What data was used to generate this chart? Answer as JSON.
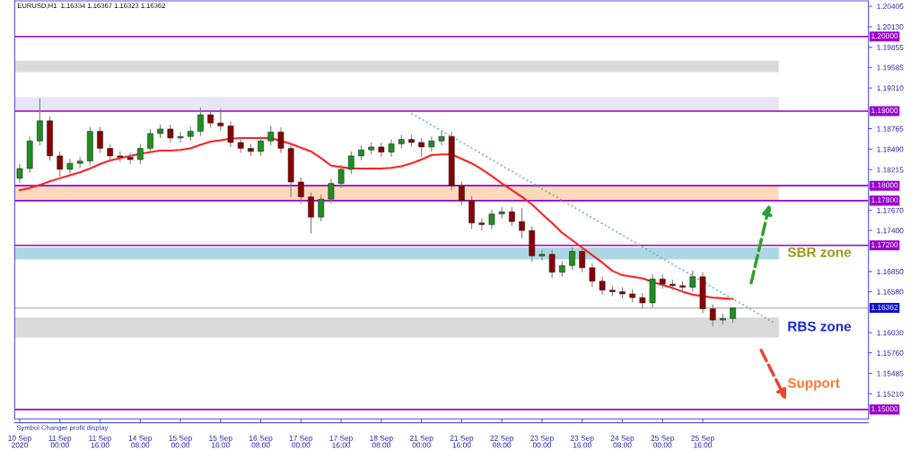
{
  "chart_data": {
    "type": "candlestick",
    "annotations": [
      "EURUSD,H1  1.16334 1.16367 1.16323 1.16362",
      "Support",
      "Symbol Changer profit display"
    ],
    "categories": [
      "10 Sep 2020",
      null,
      null,
      null,
      "11 Sep 00:00",
      null,
      null,
      null,
      "11 Sep 16:00",
      null,
      null,
      null,
      "14 Sep 08:00",
      null,
      null,
      null,
      "15 Sep 00:00",
      null,
      null,
      null,
      "15 Sep 16:00",
      null,
      null,
      null,
      "16 Sep 08:00",
      null,
      null,
      null,
      "17 Sep 00:00",
      null,
      null,
      null,
      "17 Sep 16:00",
      null,
      null,
      null,
      "18 Sep 08:00",
      null,
      null,
      null,
      "21 Sep 00:00",
      null,
      null,
      null,
      "21 Sep 16:00",
      null,
      null,
      null,
      "22 Sep 08:00",
      null,
      null,
      null,
      "23 Sep 00:00",
      null,
      null,
      null,
      "23 Sep 16:00",
      null,
      null,
      null,
      "24 Sep 08:00",
      null,
      null,
      null,
      "25 Sep 00:00",
      null,
      null,
      null,
      "25 Sep 16:00",
      null,
      null,
      null,
      null,
      null,
      null,
      null,
      null,
      null,
      null,
      null,
      null,
      null,
      null,
      null,
      null
    ],
    "ohlc": [
      [
        1.181,
        1.1829,
        1.1804,
        1.1823
      ],
      [
        1.1823,
        1.1866,
        1.1817,
        1.186
      ],
      [
        1.186,
        1.1917,
        1.1854,
        1.1887
      ],
      [
        1.1887,
        1.1893,
        1.1834,
        1.184
      ],
      [
        1.184,
        1.1846,
        1.1812,
        1.1822
      ],
      [
        1.1822,
        1.1836,
        1.1816,
        1.183
      ],
      [
        1.183,
        1.1839,
        1.1824,
        1.1833
      ],
      [
        1.1833,
        1.1879,
        1.1827,
        1.1873
      ],
      [
        1.1873,
        1.1879,
        1.1844,
        1.185
      ],
      [
        1.185,
        1.1856,
        1.1834,
        1.184
      ],
      [
        1.184,
        1.1846,
        1.1832,
        1.1838
      ],
      [
        1.1838,
        1.1844,
        1.1829,
        1.1835
      ],
      [
        1.1835,
        1.1856,
        1.1829,
        1.185
      ],
      [
        1.185,
        1.1876,
        1.1844,
        1.187
      ],
      [
        1.187,
        1.1882,
        1.1864,
        1.1876
      ],
      [
        1.1876,
        1.1882,
        1.1858,
        1.1864
      ],
      [
        1.1864,
        1.1872,
        1.1858,
        1.1866
      ],
      [
        1.1866,
        1.1879,
        1.186,
        1.1873
      ],
      [
        1.1873,
        1.1905,
        1.1867,
        1.1895
      ],
      [
        1.1895,
        1.1901,
        1.1878,
        1.1884
      ],
      [
        1.1884,
        1.1903,
        1.1874,
        1.188
      ],
      [
        1.188,
        1.1886,
        1.1852,
        1.1858
      ],
      [
        1.1858,
        1.1864,
        1.1844,
        1.185
      ],
      [
        1.185,
        1.1856,
        1.184,
        1.1846
      ],
      [
        1.1846,
        1.1866,
        1.184,
        1.186
      ],
      [
        1.186,
        1.188,
        1.1854,
        1.1872
      ],
      [
        1.1872,
        1.1878,
        1.1844,
        1.185
      ],
      [
        1.185,
        1.1856,
        1.1785,
        1.1805
      ],
      [
        1.1805,
        1.1811,
        1.1776,
        1.1785
      ],
      [
        1.1785,
        1.1791,
        1.1736,
        1.1758
      ],
      [
        1.1758,
        1.1788,
        1.1752,
        1.1782
      ],
      [
        1.1782,
        1.1809,
        1.1776,
        1.1803
      ],
      [
        1.1803,
        1.1828,
        1.1797,
        1.1822
      ],
      [
        1.1822,
        1.1846,
        1.1816,
        1.184
      ],
      [
        1.184,
        1.1854,
        1.1834,
        1.1848
      ],
      [
        1.1848,
        1.1858,
        1.1842,
        1.1852
      ],
      [
        1.1852,
        1.1858,
        1.1839,
        1.1845
      ],
      [
        1.1845,
        1.1862,
        1.1839,
        1.1856
      ],
      [
        1.1856,
        1.1868,
        1.185,
        1.1862
      ],
      [
        1.1862,
        1.1868,
        1.1852,
        1.1858
      ],
      [
        1.1858,
        1.1864,
        1.1838,
        1.1852
      ],
      [
        1.1852,
        1.1866,
        1.1846,
        1.186
      ],
      [
        1.186,
        1.1873,
        1.1854,
        1.1866
      ],
      [
        1.1866,
        1.1872,
        1.1794,
        1.18
      ],
      [
        1.18,
        1.1806,
        1.1774,
        1.178
      ],
      [
        1.178,
        1.1786,
        1.1742,
        1.175
      ],
      [
        1.175,
        1.1756,
        1.174,
        1.1748
      ],
      [
        1.1748,
        1.1768,
        1.1742,
        1.1762
      ],
      [
        1.1762,
        1.1771,
        1.1756,
        1.1765
      ],
      [
        1.1765,
        1.1771,
        1.1746,
        1.1752
      ],
      [
        1.1752,
        1.177,
        1.173,
        1.174
      ],
      [
        1.174,
        1.1746,
        1.1698,
        1.1706
      ],
      [
        1.1706,
        1.1714,
        1.17,
        1.1708
      ],
      [
        1.1708,
        1.1714,
        1.1676,
        1.1684
      ],
      [
        1.1684,
        1.1699,
        1.1678,
        1.1693
      ],
      [
        1.1693,
        1.1718,
        1.1687,
        1.1712
      ],
      [
        1.1712,
        1.1718,
        1.1684,
        1.169
      ],
      [
        1.169,
        1.1696,
        1.1664,
        1.1672
      ],
      [
        1.1672,
        1.1678,
        1.1654,
        1.166
      ],
      [
        1.166,
        1.1666,
        1.1652,
        1.1658
      ],
      [
        1.1658,
        1.1664,
        1.1649,
        1.1655
      ],
      [
        1.1655,
        1.1661,
        1.1644,
        1.165
      ],
      [
        1.165,
        1.1656,
        1.1635,
        1.1643
      ],
      [
        1.1643,
        1.1681,
        1.1637,
        1.1675
      ],
      [
        1.1675,
        1.1681,
        1.1662,
        1.1668
      ],
      [
        1.1668,
        1.1674,
        1.166,
        1.1666
      ],
      [
        1.1666,
        1.1672,
        1.1658,
        1.1664
      ],
      [
        1.1664,
        1.1686,
        1.1658,
        1.1678
      ],
      [
        1.1678,
        1.1684,
        1.1629,
        1.1635
      ],
      [
        1.1635,
        1.1641,
        1.1612,
        1.162
      ],
      [
        1.162,
        1.1628,
        1.1614,
        1.1622
      ],
      [
        1.1622,
        1.16367,
        1.1616,
        1.16362
      ],
      null,
      null,
      null,
      null,
      null,
      null,
      null,
      null,
      null,
      null,
      null,
      null,
      null
    ],
    "series": [
      {
        "type": "line",
        "color": "#ff2020",
        "values": [
          1.1794,
          1.1797,
          1.1801,
          1.1806,
          1.181,
          1.1814,
          1.1818,
          1.1823,
          1.1829,
          1.1834,
          1.1837,
          1.184,
          1.1843,
          1.1845,
          1.1847,
          1.1847,
          1.1848,
          1.185,
          1.1855,
          1.1859,
          1.1861,
          1.1863,
          1.1864,
          1.1864,
          1.1864,
          1.1864,
          1.186,
          1.1856,
          1.1851,
          1.1846,
          1.1837,
          1.1827,
          1.1825,
          1.1823,
          1.1823,
          1.1823,
          1.1823,
          1.1824,
          1.1826,
          1.183,
          1.1835,
          1.1841,
          1.1842,
          1.1842,
          1.1836,
          1.183,
          1.1822,
          1.1813,
          1.1803,
          1.1794,
          1.1785,
          1.1775,
          1.1762,
          1.175,
          1.1737,
          1.1727,
          1.1717,
          1.1707,
          1.1697,
          1.1686,
          1.168,
          1.1678,
          1.1676,
          1.1671,
          1.1667,
          1.1663,
          1.1658,
          1.1654,
          1.1652,
          1.165,
          1.1649,
          1.1648,
          null,
          null,
          null,
          null,
          null,
          null,
          null,
          null,
          null,
          null,
          null,
          null,
          null
        ]
      },
      {
        "type": "line",
        "color": "#6fb3b3",
        "line_style": "dotted",
        "values": [
          null,
          null,
          null,
          null,
          null,
          null,
          null,
          null,
          null,
          null,
          null,
          null,
          null,
          null,
          null,
          null,
          null,
          null,
          null,
          null,
          null,
          null,
          null,
          null,
          null,
          null,
          null,
          null,
          null,
          null,
          null,
          null,
          null,
          null,
          null,
          null,
          null,
          null,
          null,
          1.1897,
          null,
          null,
          null,
          null,
          null,
          null,
          null,
          null,
          null,
          null,
          null,
          null,
          null,
          null,
          null,
          null,
          null,
          null,
          null,
          null,
          null,
          null,
          null,
          null,
          null,
          null,
          null,
          null,
          null,
          null,
          null,
          null,
          null,
          null,
          null,
          1.1617,
          null,
          null,
          null,
          null,
          null,
          null,
          null,
          null,
          null
        ]
      }
    ],
    "ref_lines": [
      {
        "axis": "y",
        "value": 1.2,
        "label": "1.20000",
        "color": "#9900cc"
      },
      {
        "axis": "y",
        "value": 1.19,
        "label": "1.19000",
        "color": "#9900cc"
      },
      {
        "axis": "y",
        "value": 1.18,
        "label": "1.18000",
        "color": "#9900cc"
      },
      {
        "axis": "y",
        "value": 1.178,
        "label": "1.17800",
        "color": "#9900cc"
      },
      {
        "axis": "y",
        "value": 1.172,
        "label": "1.17200",
        "color": "#9900cc"
      },
      {
        "axis": "y",
        "value": 1.16362,
        "label": "1.16362",
        "color": "#c0c0c0"
      },
      {
        "axis": "y",
        "value": 1.15,
        "label": "1.15000",
        "color": "#9900cc"
      }
    ],
    "bands": [
      {
        "axis": "y",
        "from": 1.19523,
        "to": 1.19674,
        "color": "#d9d9d9"
      },
      {
        "axis": "y",
        "from": 1.19,
        "to": 1.19186,
        "color": "#e6e6f7"
      },
      {
        "axis": "y",
        "from": 1.178,
        "to": 1.18,
        "color": "#fcd9b8"
      },
      {
        "axis": "y",
        "from": 1.17012,
        "to": 1.17174,
        "color": "#add8e3",
        "label": "SBR zone"
      },
      {
        "axis": "y",
        "from": 1.15965,
        "to": 1.16233,
        "color": "#d9d9d9",
        "label": "RBS zone"
      }
    ],
    "ylim": [
      1.14872,
      1.20477
    ],
    "yticks": [
      {
        "value": 1.20405,
        "label": "1.20405"
      },
      {
        "value": 1.2013,
        "label": "1.20130"
      },
      {
        "value": 1.19855,
        "label": "1.19855"
      },
      {
        "value": 1.19585,
        "label": "1.19585"
      },
      {
        "value": 1.1931,
        "label": "1.19310"
      },
      {
        "value": 1.18765,
        "label": "1.18765"
      },
      {
        "value": 1.1849,
        "label": "1.18490"
      },
      {
        "value": 1.18215,
        "label": "1.18215"
      },
      {
        "value": 1.1767,
        "label": "1.17670"
      },
      {
        "value": 1.174,
        "label": "1.17400"
      },
      {
        "value": 1.1685,
        "label": "1.16850"
      },
      {
        "value": 1.1658,
        "label": "1.16580"
      },
      {
        "value": 1.1603,
        "label": "1.16030"
      },
      {
        "value": 1.1576,
        "label": "1.15760"
      },
      {
        "value": 1.15485,
        "label": "1.15485"
      },
      {
        "value": 1.1521,
        "label": "1.15210"
      }
    ],
    "grid": false
  }
}
